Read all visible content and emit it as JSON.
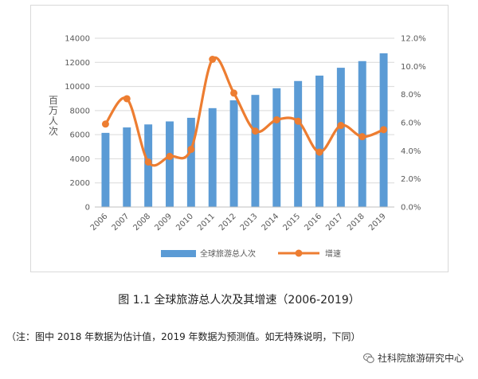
{
  "chart_data": {
    "type": "bar",
    "categories": [
      "2006",
      "2007",
      "2008",
      "2009",
      "2010",
      "2011",
      "2012",
      "2013",
      "2014",
      "2015",
      "2016",
      "2017",
      "2018",
      "2019"
    ],
    "ylabel": "百万人次",
    "ylim": [
      0,
      14000
    ],
    "y_ticks": [
      "0",
      "2000",
      "4000",
      "6000",
      "8000",
      "10000",
      "12000",
      "14000"
    ],
    "y2lim": [
      0,
      12
    ],
    "y2_ticks": [
      "0.0%",
      "2.0%",
      "4.0%",
      "6.0%",
      "8.0%",
      "10.0%",
      "12.0%"
    ],
    "grid": true,
    "legend_position": "bottom",
    "series": [
      {
        "name": "全球旅游总人次",
        "kind": "bar",
        "axis": "left",
        "color": "#5b9bd5",
        "values": [
          6150,
          6600,
          6850,
          7100,
          7400,
          8200,
          8850,
          9300,
          9850,
          10450,
          10900,
          11550,
          12100,
          12750
        ]
      },
      {
        "name": "增速",
        "kind": "line",
        "axis": "right",
        "color": "#ed7d31",
        "values": [
          5.9,
          7.7,
          3.2,
          3.6,
          4.1,
          10.5,
          8.1,
          5.4,
          6.2,
          6.1,
          3.9,
          5.8,
          5.0,
          5.5
        ]
      }
    ]
  },
  "caption": "图 1.1 全球旅游总人次及其增速（2006-2019）",
  "note": "（注：图中 2018 年数据为估计值，2019 年数据为预测值。如无特殊说明，下同）",
  "watermark": {
    "text": "社科院旅游研究中心",
    "icon": "wechat-icon"
  }
}
